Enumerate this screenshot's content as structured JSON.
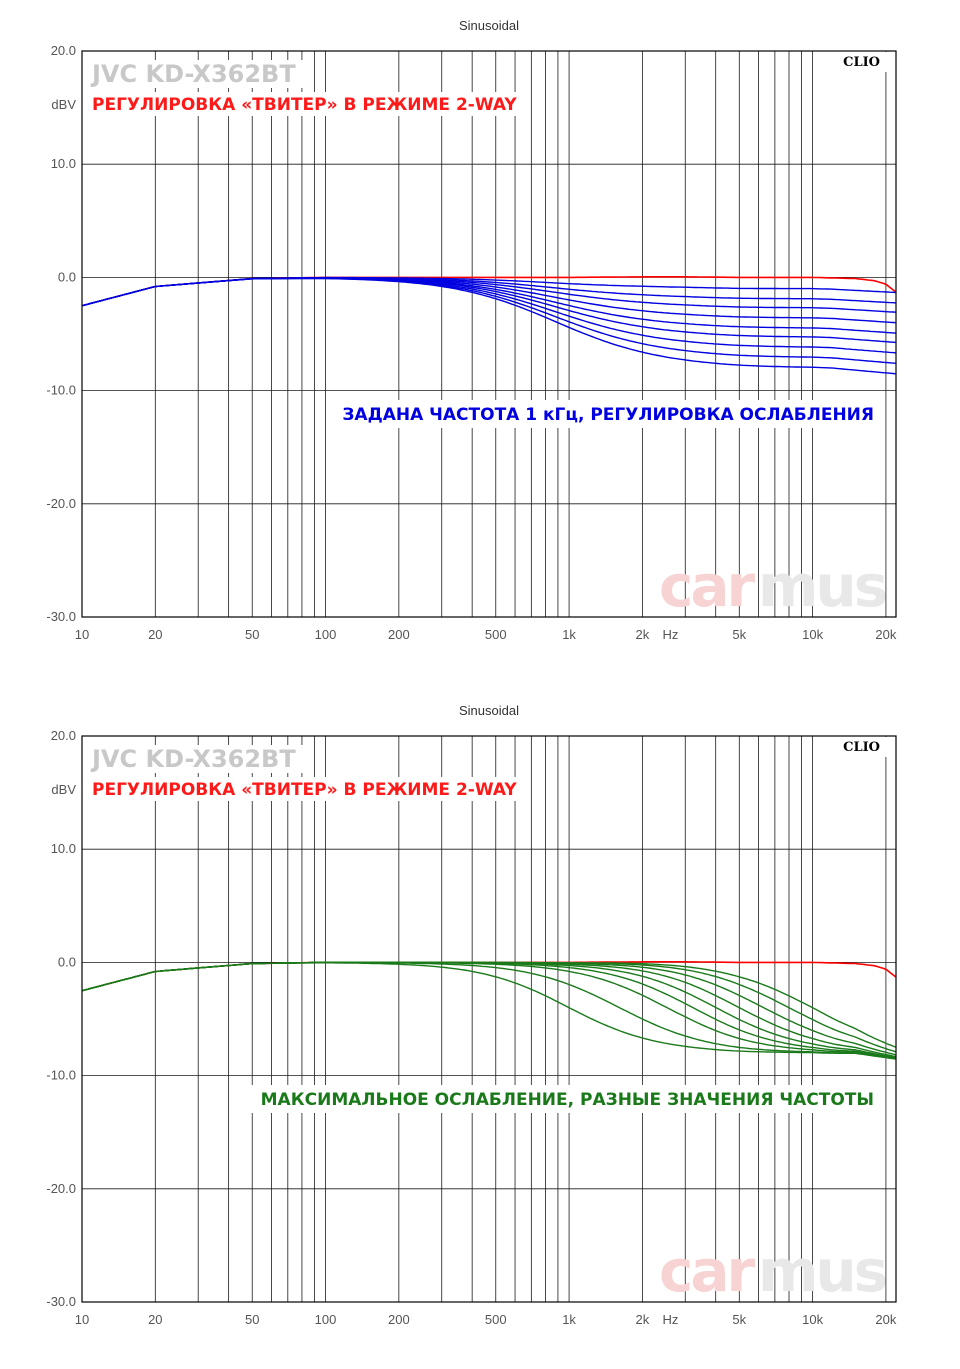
{
  "chart_data": [
    {
      "type": "line",
      "title": "Sinusoidal",
      "brand": "CLIO",
      "model_label": "JVC KD-X362BT",
      "subtitle": "РЕГУЛИРОВКА «ТВИТЕР» В РЕЖИМЕ 2-WAY",
      "annotation": "ЗАДАНА ЧАСТОТА 1 кГц, РЕГУЛИРОВКА ОСЛАБЛЕНИЯ",
      "watermark": [
        "car",
        "mus"
      ],
      "ylabel": "dBV",
      "xlabel": "Hz",
      "xscale": "log",
      "xlim": [
        10,
        22000
      ],
      "ylim": [
        -30,
        20
      ],
      "grid": true,
      "x_ticks": [
        10,
        20,
        50,
        100,
        200,
        500,
        1000,
        2000,
        5000,
        10000,
        20000
      ],
      "x_tick_labels": [
        "10",
        "20",
        "50",
        "100",
        "200",
        "500",
        "1k",
        "2k",
        "5k",
        "10k",
        "20k"
      ],
      "y_ticks": [
        20,
        10,
        0,
        -10,
        -20,
        -30
      ],
      "y_tick_labels": [
        "20.0",
        "10.0",
        "0.0",
        "-10.0",
        "-20.0",
        "-30.0"
      ],
      "colors": {
        "reference": "#ff0000",
        "series": "#0000e0",
        "annotation": "#0000e0"
      },
      "reference_curve": {
        "x": [
          10,
          20,
          50,
          100,
          200,
          300,
          500,
          1000,
          2000,
          3000,
          5000,
          10000,
          15000,
          18000,
          20000,
          22000
        ],
        "y": [
          -2.5,
          -0.8,
          -0.1,
          0,
          0,
          0,
          0,
          0,
          0.05,
          0.05,
          0,
          0,
          -0.1,
          -0.3,
          -0.6,
          -1.3
        ]
      },
      "series_attenuation_db": [
        -1.0,
        -1.9,
        -2.7,
        -3.6,
        -4.5,
        -5.3,
        -6.2,
        -7.1,
        -8.0
      ]
    },
    {
      "type": "line",
      "title": "Sinusoidal",
      "brand": "CLIO",
      "model_label": "JVC KD-X362BT",
      "subtitle": "РЕГУЛИРОВКА «ТВИТЕР» В РЕЖИМЕ 2-WAY",
      "annotation": "МАКСИМАЛЬНОЕ ОСЛАБЛЕНИЕ, РАЗНЫЕ ЗНАЧЕНИЯ ЧАСТОТЫ",
      "watermark": [
        "car",
        "mus"
      ],
      "ylabel": "dBV",
      "xlabel": "Hz",
      "xscale": "log",
      "xlim": [
        10,
        22000
      ],
      "ylim": [
        -30,
        20
      ],
      "grid": true,
      "x_ticks": [
        10,
        20,
        50,
        100,
        200,
        500,
        1000,
        2000,
        5000,
        10000,
        20000
      ],
      "x_tick_labels": [
        "10",
        "20",
        "50",
        "100",
        "200",
        "500",
        "1k",
        "2k",
        "5k",
        "10k",
        "20k"
      ],
      "y_ticks": [
        20,
        10,
        0,
        -10,
        -20,
        -30
      ],
      "y_tick_labels": [
        "20.0",
        "10.0",
        "0.0",
        "-10.0",
        "-20.0",
        "-30.0"
      ],
      "colors": {
        "reference": "#ff0000",
        "series": "#1a7a1a",
        "annotation": "#1a7a1a"
      },
      "reference_curve": {
        "x": [
          10,
          20,
          50,
          100,
          200,
          300,
          500,
          1000,
          2000,
          3000,
          5000,
          10000,
          15000,
          18000,
          20000,
          22000
        ],
        "y": [
          -2.5,
          -0.8,
          -0.1,
          0,
          0,
          0,
          0,
          0,
          0.05,
          0.05,
          0,
          0,
          -0.1,
          -0.3,
          -0.6,
          -1.3
        ]
      },
      "series_corner_hz": [
        1000,
        1600,
        2500,
        3200,
        4000,
        5000,
        6300,
        8000,
        10000
      ]
    }
  ]
}
